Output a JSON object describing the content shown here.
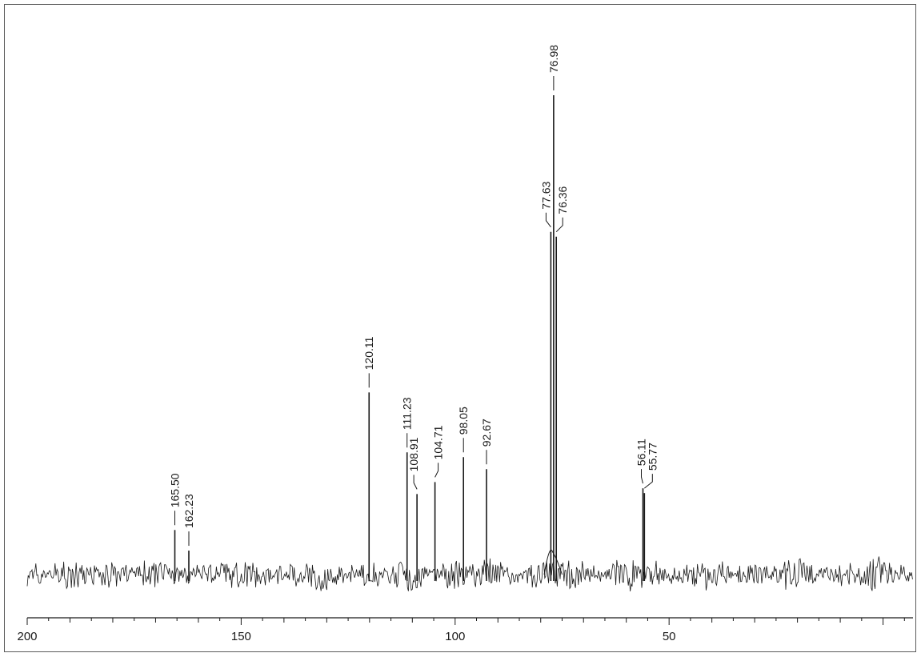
{
  "chart_data": {
    "type": "line",
    "title": "",
    "xlabel": "",
    "ylabel": "",
    "xlim": [
      200,
      -7
    ],
    "x_reversed": true,
    "x_ticks": [
      200,
      150,
      100,
      50
    ],
    "x_tick_labels": [
      "200",
      "150",
      "100",
      "50"
    ],
    "grid": false,
    "legend": "none",
    "baseline_noise": true,
    "peaks": [
      {
        "x": 165.5,
        "label": "165.50",
        "intensity": 0.093
      },
      {
        "x": 162.23,
        "label": "162.23",
        "intensity": 0.05
      },
      {
        "x": 120.11,
        "label": "120.11",
        "intensity": 0.38
      },
      {
        "x": 111.23,
        "label": "111.23",
        "intensity": 0.255
      },
      {
        "x": 108.91,
        "label": "108.91",
        "intensity": 0.168
      },
      {
        "x": 104.71,
        "label": "104.71",
        "intensity": 0.193
      },
      {
        "x": 98.05,
        "label": "98.05",
        "intensity": 0.245
      },
      {
        "x": 92.67,
        "label": "92.67",
        "intensity": 0.22
      },
      {
        "x": 77.63,
        "label": "77.63",
        "intensity": 0.715
      },
      {
        "x": 76.98,
        "label": "76.98",
        "intensity": 1.0
      },
      {
        "x": 76.36,
        "label": "76.36",
        "intensity": 0.705
      },
      {
        "x": 56.11,
        "label": "56.11",
        "intensity": 0.18
      },
      {
        "x": 55.77,
        "label": "55.77",
        "intensity": 0.17
      }
    ],
    "colors": {
      "trace": "#1a1a1a",
      "frame": "#5a5a5a"
    }
  }
}
